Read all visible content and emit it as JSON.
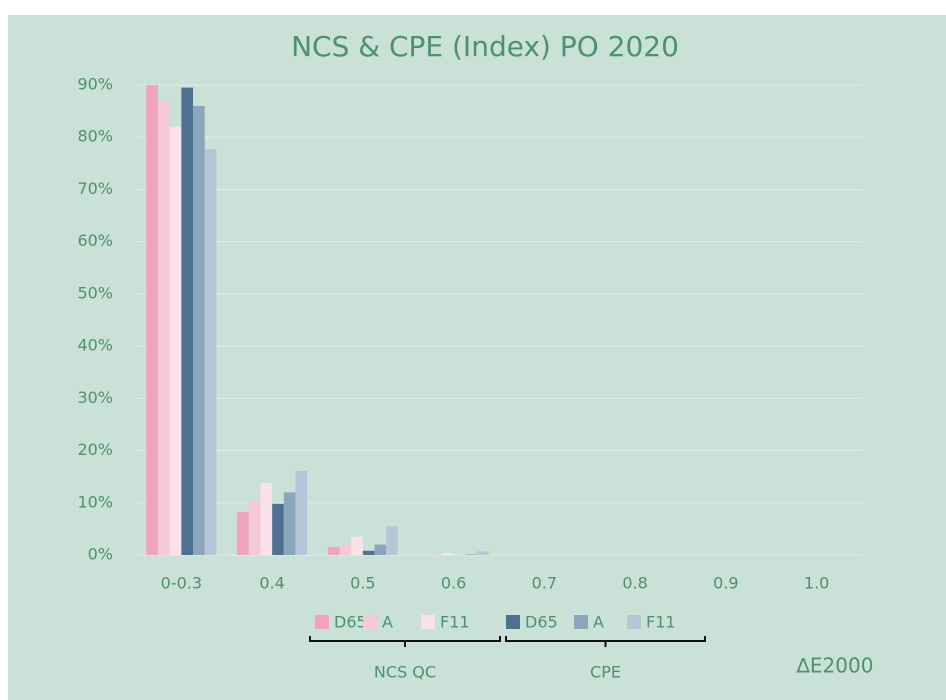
{
  "chart_data": {
    "type": "bar",
    "title": "NCS & CPE (Index) PO 2020",
    "x_label": "∆E2000",
    "categories": [
      "0-0.3",
      "0.4",
      "0.5",
      "0.6",
      "0.7",
      "0.8",
      "0.9",
      "1.0"
    ],
    "series": [
      {
        "name": "D65",
        "color": "#f0a3ba",
        "values": [
          90,
          8.2,
          1.5,
          0,
          0,
          0,
          0,
          0
        ]
      },
      {
        "name": "A",
        "color": "#f6c9d6",
        "values": [
          87,
          10.3,
          2,
          0.1,
          0,
          0,
          0,
          0
        ]
      },
      {
        "name": "F11",
        "color": "#fae1e9",
        "values": [
          82,
          13.8,
          3.5,
          0.4,
          0,
          0,
          0,
          0
        ]
      },
      {
        "name": "D65",
        "color": "#4f7191",
        "values": [
          89.5,
          9.8,
          0.8,
          0,
          0,
          0,
          0,
          0
        ]
      },
      {
        "name": "A",
        "color": "#8ba5bd",
        "values": [
          86,
          12,
          2,
          0.1,
          0,
          0,
          0,
          0
        ]
      },
      {
        "name": "F11",
        "color": "#b6c6d9",
        "values": [
          77.7,
          16.1,
          5.5,
          0.7,
          0,
          0,
          0,
          0
        ]
      }
    ],
    "legend_groups": [
      "NCS QC",
      "CPE"
    ],
    "ylim": [
      0,
      90
    ],
    "yticks": [
      {
        "value": 0,
        "label": "0%"
      },
      {
        "value": 10,
        "label": "10%"
      },
      {
        "value": 20,
        "label": "20%"
      },
      {
        "value": 30,
        "label": "30%"
      },
      {
        "value": 40,
        "label": "40%"
      },
      {
        "value": 50,
        "label": "50%"
      },
      {
        "value": 60,
        "label": "60%"
      },
      {
        "value": 70,
        "label": "70%"
      },
      {
        "value": 80,
        "label": "80%"
      },
      {
        "value": 90,
        "label": "90%"
      }
    ],
    "grid": true
  }
}
